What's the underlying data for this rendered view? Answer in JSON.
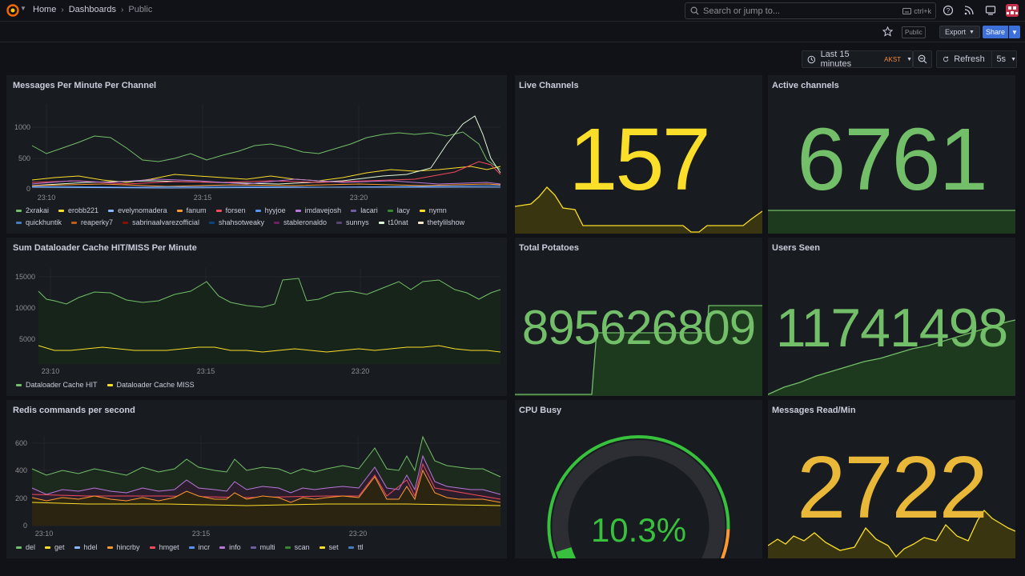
{
  "breadcrumbs": [
    "Home",
    "Dashboards",
    "Public"
  ],
  "search": {
    "placeholder": "Search or jump to...",
    "shortcut": "ctrl+k"
  },
  "toolbar": {
    "public_tag": "Public",
    "export_label": "Export",
    "share_label": "Share"
  },
  "timepicker": {
    "range": "Last 15 minutes",
    "timezone": "AKST"
  },
  "refresh": {
    "label": "Refresh",
    "interval": "5s"
  },
  "colors": {
    "green": "#73bf69",
    "yellow": "#fade2a",
    "orange": "#ff9830",
    "red": "#f2495c",
    "blue": "#5794f2",
    "purple": "#b877d9",
    "accent_blue": "#3d71d9"
  },
  "panels": {
    "messages_per_minute": {
      "title": "Messages Per Minute Per Channel",
      "y_ticks": [
        "1000",
        "500",
        "0"
      ],
      "x_ticks": [
        "23:10",
        "23:15",
        "23:20"
      ],
      "legend": [
        {
          "name": "2xrakai",
          "color": "#73bf69"
        },
        {
          "name": "erobb221",
          "color": "#fade2a"
        },
        {
          "name": "evelynomadera",
          "color": "#8ab8ff"
        },
        {
          "name": "fanum",
          "color": "#ff9830"
        },
        {
          "name": "forsen",
          "color": "#f2495c"
        },
        {
          "name": "hyyjoe",
          "color": "#5794f2"
        },
        {
          "name": "imdavejosh",
          "color": "#b877d9"
        },
        {
          "name": "lacari",
          "color": "#705da0"
        },
        {
          "name": "lacy",
          "color": "#37872d"
        },
        {
          "name": "nymn",
          "color": "#fade2a"
        },
        {
          "name": "quickhuntik",
          "color": "#447ebc"
        },
        {
          "name": "reaperky7",
          "color": "#c15c17"
        },
        {
          "name": "sabrinaalvarezofficial",
          "color": "#890f02"
        },
        {
          "name": "shahsotweaky",
          "color": "#0a437c"
        },
        {
          "name": "stableronaldo",
          "color": "#6d1f62"
        },
        {
          "name": "sunnys",
          "color": "#584477"
        },
        {
          "name": "t10nat",
          "color": "#e0f9d7"
        },
        {
          "name": "thetylilshow",
          "color": "#fceaca"
        }
      ]
    },
    "live_channels": {
      "title": "Live Channels",
      "value": "157"
    },
    "active_channels": {
      "title": "Active channels",
      "value": "6761"
    },
    "dataloader": {
      "title": "Sum Dataloader Cache HIT/MISS Per Minute",
      "y_ticks": [
        "15000",
        "10000",
        "5000"
      ],
      "x_ticks": [
        "23:10",
        "23:15",
        "23:20"
      ],
      "legend": [
        {
          "name": "Dataloader Cache HIT",
          "color": "#73bf69"
        },
        {
          "name": "Dataloader Cache MISS",
          "color": "#fade2a"
        }
      ]
    },
    "total_potatoes": {
      "title": "Total Potatoes",
      "value": "895626809"
    },
    "users_seen": {
      "title": "Users Seen",
      "value": "11741498"
    },
    "redis": {
      "title": "Redis commands per second",
      "y_ticks": [
        "600",
        "400",
        "200",
        "0"
      ],
      "x_ticks": [
        "23:10",
        "23:15",
        "23:20"
      ],
      "legend": [
        {
          "name": "del",
          "color": "#73bf69"
        },
        {
          "name": "get",
          "color": "#fade2a"
        },
        {
          "name": "hdel",
          "color": "#8ab8ff"
        },
        {
          "name": "hincrby",
          "color": "#ff9830"
        },
        {
          "name": "hmget",
          "color": "#f2495c"
        },
        {
          "name": "incr",
          "color": "#5794f2"
        },
        {
          "name": "info",
          "color": "#b877d9"
        },
        {
          "name": "multi",
          "color": "#705da0"
        },
        {
          "name": "scan",
          "color": "#37872d"
        },
        {
          "name": "set",
          "color": "#fade2a"
        },
        {
          "name": "ttl",
          "color": "#447ebc"
        }
      ]
    },
    "cpu_busy": {
      "title": "CPU Busy",
      "value": "10.3%",
      "fraction": 0.103
    },
    "messages_read": {
      "title": "Messages Read/Min",
      "value": "2722"
    }
  }
}
